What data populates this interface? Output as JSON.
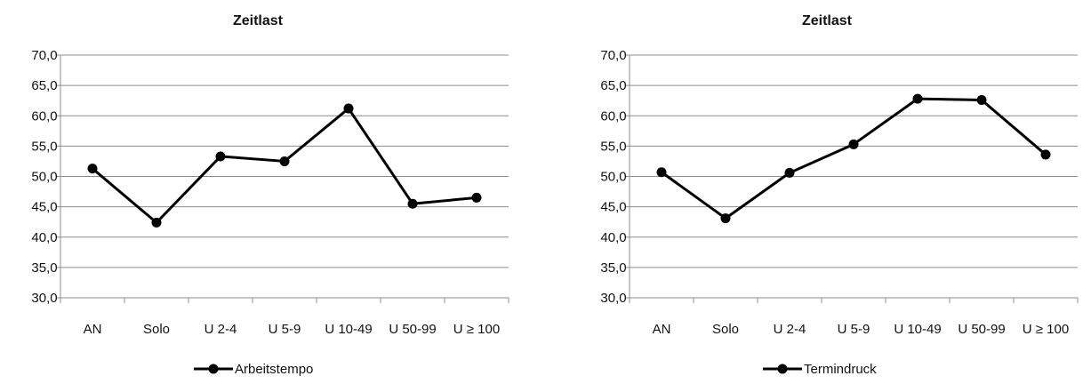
{
  "chart_data": [
    {
      "type": "line",
      "title": "Zeitlast",
      "categories": [
        "AN",
        "Solo",
        "U 2-4",
        "U 5-9",
        "U 10-49",
        "U 50-99",
        "U ≥ 100"
      ],
      "series": [
        {
          "name": "Arbeitstempo",
          "values": [
            51.3,
            42.4,
            53.3,
            52.5,
            61.2,
            45.5,
            46.5
          ]
        }
      ],
      "yticks": [
        "70,0",
        "65,0",
        "60,0",
        "55,0",
        "50,0",
        "45,0",
        "40,0",
        "35,0",
        "30,0"
      ],
      "ylim": [
        30,
        70
      ],
      "grid": true,
      "legend_position": "bottom",
      "line_color": "#000000"
    },
    {
      "type": "line",
      "title": "Zeitlast",
      "categories": [
        "AN",
        "Solo",
        "U 2-4",
        "U 5-9",
        "U 10-49",
        "U 50-99",
        "U ≥ 100"
      ],
      "series": [
        {
          "name": "Termindruck",
          "values": [
            50.7,
            43.1,
            50.6,
            55.3,
            62.8,
            62.6,
            53.6
          ]
        }
      ],
      "yticks": [
        "70,0",
        "65,0",
        "60,0",
        "55,0",
        "50,0",
        "45,0",
        "40,0",
        "35,0",
        "30,0"
      ],
      "ylim": [
        30,
        70
      ],
      "grid": true,
      "legend_position": "bottom",
      "line_color": "#000000"
    }
  ]
}
